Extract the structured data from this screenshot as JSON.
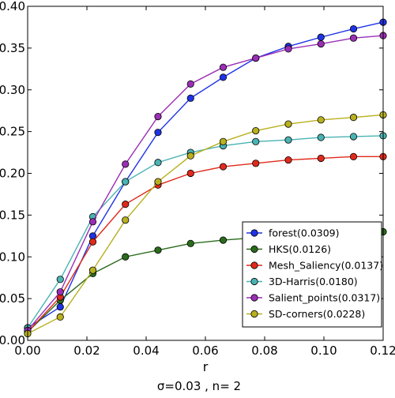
{
  "chart_data": {
    "type": "line",
    "xlabel": "r",
    "ylabel": "",
    "caption": "σ=0.03  , n= 2",
    "xlim": [
      0,
      0.12
    ],
    "ylim": [
      0,
      0.4
    ],
    "xticks": [
      0.0,
      0.02,
      0.04,
      0.06,
      0.08,
      0.1,
      0.12
    ],
    "yticks": [
      0.0,
      0.05,
      0.1,
      0.15,
      0.2,
      0.25,
      0.3,
      0.35,
      0.4
    ],
    "xtick_labels": [
      "0.00",
      "0.02",
      "0.04",
      "0.06",
      "0.08",
      "0.10",
      "0.12"
    ],
    "ytick_labels": [
      "0.00",
      "0.05",
      "0.10",
      "0.15",
      "0.20",
      "0.25",
      "0.30",
      "0.35",
      "0.40"
    ],
    "grid": false,
    "legend_position": "lower-right",
    "x": [
      0.0,
      0.011,
      0.022,
      0.033,
      0.044,
      0.055,
      0.066,
      0.077,
      0.088,
      0.099,
      0.11,
      0.12
    ],
    "series": [
      {
        "name": "forest(0.0309)",
        "color": "#1f33e6",
        "values": [
          0.015,
          0.04,
          0.125,
          0.19,
          0.249,
          0.29,
          0.315,
          0.338,
          0.352,
          0.363,
          0.373,
          0.381
        ]
      },
      {
        "name": "HKS(0.0126)",
        "color": "#2a6b1c",
        "values": [
          0.01,
          0.048,
          0.08,
          0.1,
          0.108,
          0.116,
          0.12,
          0.123,
          0.125,
          0.127,
          0.128,
          0.13
        ]
      },
      {
        "name": "Mesh_Saliency(0.0137)",
        "color": "#e02a1c",
        "values": [
          0.01,
          0.052,
          0.118,
          0.163,
          0.186,
          0.2,
          0.208,
          0.212,
          0.216,
          0.218,
          0.22,
          0.22
        ]
      },
      {
        "name": "3D-Harris(0.0180)",
        "color": "#4ab3b3",
        "values": [
          0.015,
          0.073,
          0.148,
          0.19,
          0.213,
          0.225,
          0.233,
          0.238,
          0.24,
          0.243,
          0.244,
          0.245
        ]
      },
      {
        "name": "Salient_points(0.0317)",
        "color": "#9a2fb5",
        "values": [
          0.012,
          0.058,
          0.142,
          0.211,
          0.268,
          0.307,
          0.327,
          0.338,
          0.349,
          0.355,
          0.362,
          0.365
        ]
      },
      {
        "name": "SD-corners(0.0228)",
        "color": "#b8b01f",
        "values": [
          0.008,
          0.028,
          0.084,
          0.144,
          0.19,
          0.221,
          0.238,
          0.251,
          0.259,
          0.264,
          0.267,
          0.27
        ]
      }
    ]
  }
}
